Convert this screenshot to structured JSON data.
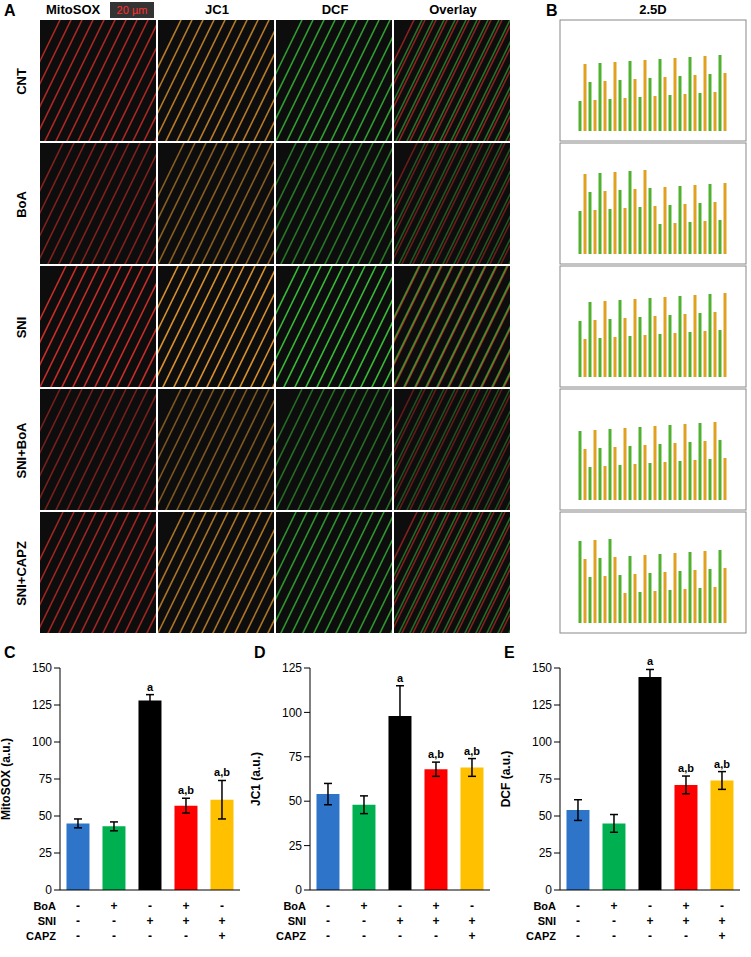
{
  "images": {
    "A": {
      "label": "A",
      "scale_bar": "20 µm",
      "columns": [
        "MitoSOX",
        "JC1",
        "DCF",
        "Overlay"
      ],
      "rows": [
        "CNT",
        "BoA",
        "SNI",
        "SNI+BoA",
        "SNI+CAPZ"
      ]
    },
    "B": {
      "label": "B",
      "column": "2.5D"
    }
  },
  "chart_data": [
    {
      "type": "bar",
      "label": "C",
      "y_label": "MitoSOX (a.u.)",
      "values": [
        45,
        43,
        128,
        57,
        61
      ],
      "errors": [
        3,
        3,
        4,
        5,
        13
      ],
      "colors": [
        "#2e75c9",
        "#00b050",
        "#000000",
        "#ff0000",
        "#ffc000"
      ],
      "annotations": [
        null,
        null,
        "a",
        "a,b",
        "a,b"
      ],
      "ylim": [
        0,
        150
      ],
      "yticks": [
        0,
        25,
        50,
        75,
        100,
        125,
        150
      ],
      "treatments": {
        "rows": [
          "BoA",
          "SNI",
          "CAPZ"
        ],
        "signs": [
          [
            "-",
            "+",
            "-",
            "+",
            "-"
          ],
          [
            "-",
            "-",
            "+",
            "+",
            "+"
          ],
          [
            "-",
            "-",
            "-",
            "-",
            "+"
          ]
        ]
      }
    },
    {
      "type": "bar",
      "label": "D",
      "y_label": "JC1 (a.u.)",
      "values": [
        54,
        48,
        98,
        68,
        69
      ],
      "errors": [
        6,
        5,
        17,
        4,
        5
      ],
      "colors": [
        "#2e75c9",
        "#00b050",
        "#000000",
        "#ff0000",
        "#ffc000"
      ],
      "annotations": [
        null,
        null,
        "a",
        "a,b",
        "a,b"
      ],
      "ylim": [
        0,
        125
      ],
      "yticks": [
        0,
        25,
        50,
        75,
        100,
        125
      ],
      "treatments": {
        "rows": [
          "BoA",
          "SNI",
          "CAPZ"
        ],
        "signs": [
          [
            "-",
            "+",
            "-",
            "+",
            "-"
          ],
          [
            "-",
            "-",
            "+",
            "+",
            "+"
          ],
          [
            "-",
            "-",
            "-",
            "-",
            "+"
          ]
        ]
      }
    },
    {
      "type": "bar",
      "label": "E",
      "y_label": "DCF (a.u.)",
      "values": [
        54,
        45,
        144,
        71,
        74
      ],
      "errors": [
        7,
        6,
        5,
        6,
        6
      ],
      "colors": [
        "#2e75c9",
        "#00b050",
        "#000000",
        "#ff0000",
        "#ffc000"
      ],
      "annotations": [
        null,
        null,
        "a",
        "a,b",
        "a,b"
      ],
      "ylim": [
        0,
        150
      ],
      "yticks": [
        0,
        25,
        50,
        75,
        100,
        125,
        150
      ],
      "treatments": {
        "rows": [
          "BoA",
          "SNI",
          "CAPZ"
        ],
        "signs": [
          [
            "-",
            "+",
            "-",
            "+",
            "-"
          ],
          [
            "-",
            "-",
            "+",
            "+",
            "+"
          ],
          [
            "-",
            "-",
            "-",
            "-",
            "+"
          ]
        ]
      }
    }
  ]
}
